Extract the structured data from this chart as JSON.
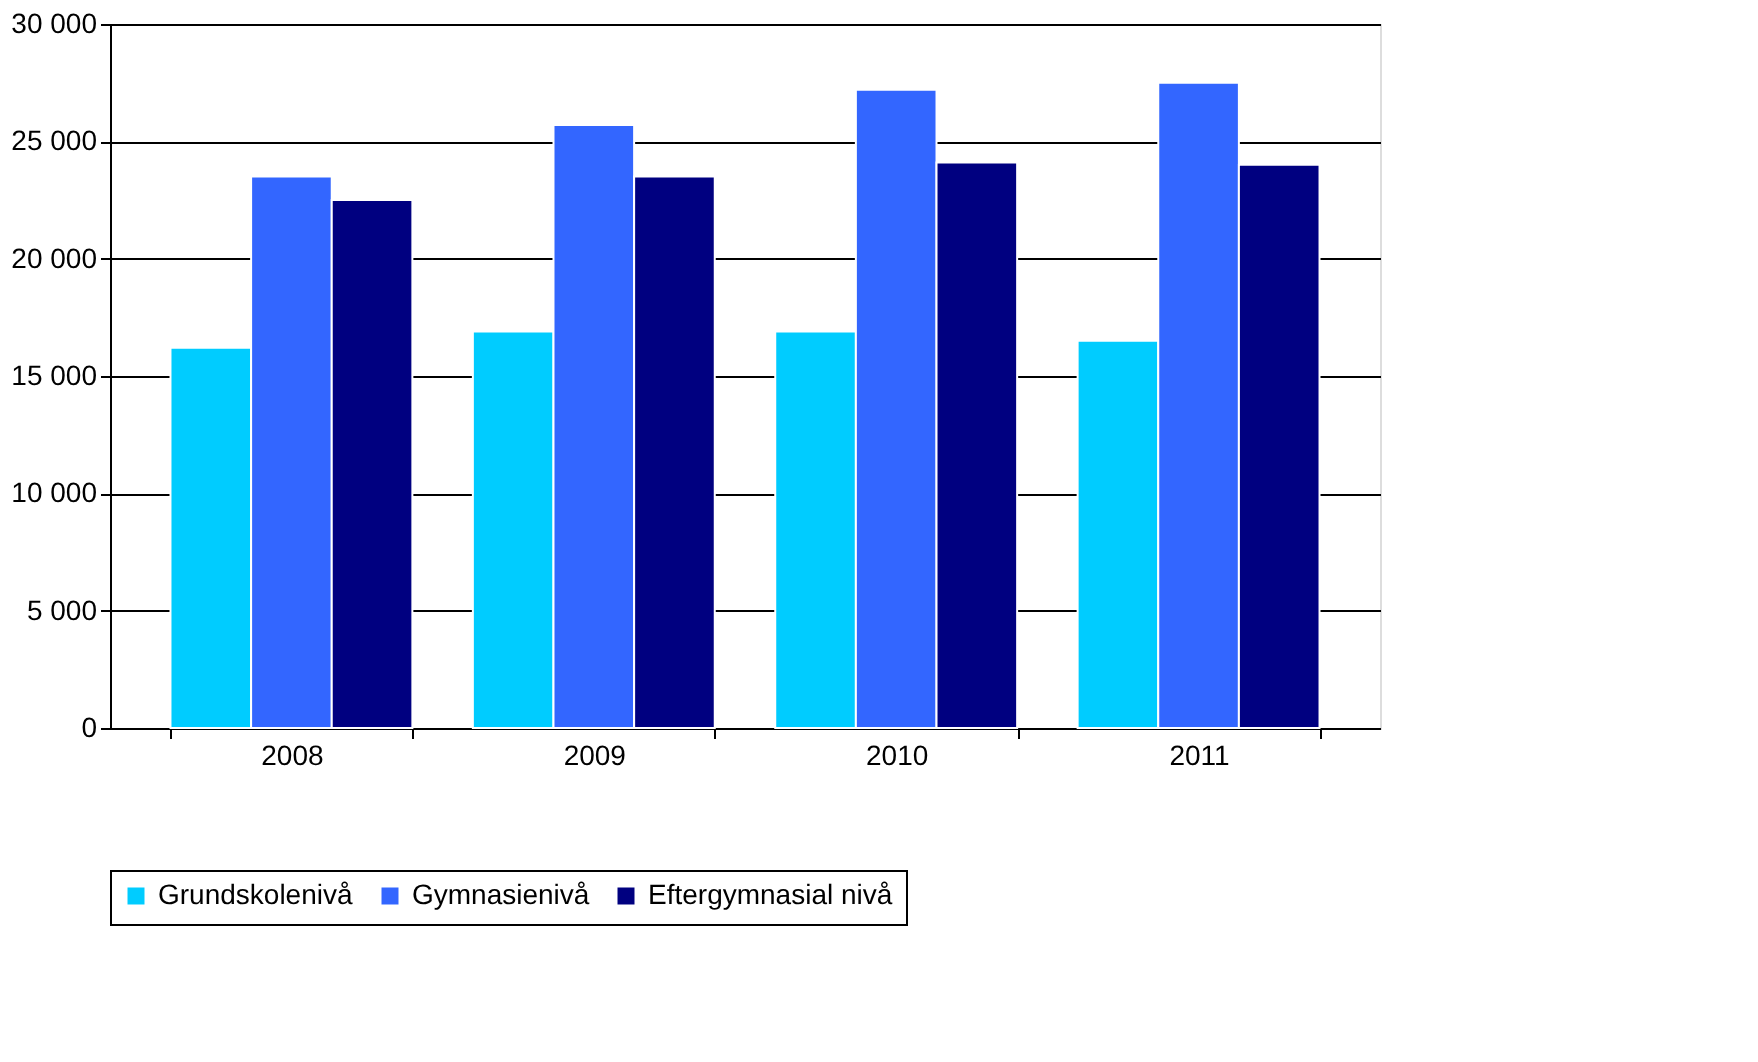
{
  "chart_data": {
    "type": "bar",
    "categories": [
      "2008",
      "2009",
      "2010",
      "2011"
    ],
    "series": [
      {
        "name": "Grundskolenivå",
        "color": "#00ccff",
        "values": [
          16200,
          16900,
          16900,
          16500
        ]
      },
      {
        "name": "Gymnasienivå",
        "color": "#3366ff",
        "values": [
          23500,
          25700,
          27200,
          27500
        ]
      },
      {
        "name": "Eftergymnasial nivå",
        "color": "#000080",
        "values": [
          22500,
          23500,
          24100,
          24000
        ]
      }
    ],
    "ylim": [
      0,
      30000
    ],
    "yticks": [
      {
        "value": 0,
        "label": "0"
      },
      {
        "value": 5000,
        "label": "5 000"
      },
      {
        "value": 10000,
        "label": "10 000"
      },
      {
        "value": 15000,
        "label": "15 000"
      },
      {
        "value": 20000,
        "label": "20 000"
      },
      {
        "value": 25000,
        "label": "25 000"
      },
      {
        "value": 30000,
        "label": "30 000"
      }
    ],
    "grid": "y",
    "legend": "bottom"
  }
}
